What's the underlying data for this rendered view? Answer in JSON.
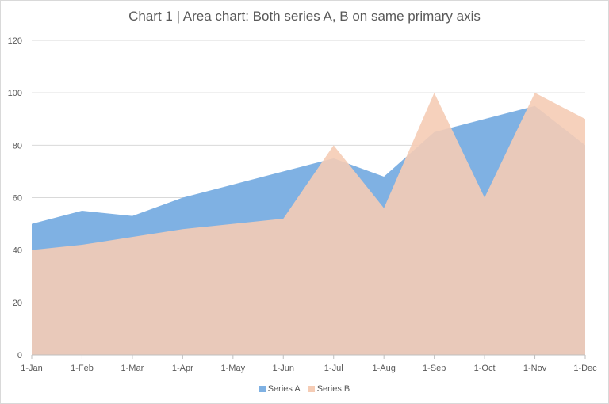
{
  "chart_data": {
    "type": "area",
    "title": "Chart 1 | Area chart: Both series A, B on same primary axis",
    "categories": [
      "1-Jan",
      "1-Feb",
      "1-Mar",
      "1-Apr",
      "1-May",
      "1-Jun",
      "1-Jul",
      "1-Aug",
      "1-Sep",
      "1-Oct",
      "1-Nov",
      "1-Dec"
    ],
    "series": [
      {
        "name": "Series A",
        "color": "#7FB1E3",
        "values": [
          50,
          55,
          53,
          60,
          65,
          70,
          75,
          68,
          85,
          90,
          95,
          80
        ]
      },
      {
        "name": "Series B",
        "color": "#F5CCB5",
        "values": [
          40,
          42,
          45,
          48,
          50,
          52,
          80,
          56,
          100,
          60,
          100,
          90
        ]
      }
    ],
    "ylim": [
      0,
      120
    ],
    "yticks": [
      0,
      20,
      40,
      60,
      80,
      100,
      120
    ],
    "grid": true,
    "legend": "bottom",
    "xlabel": "",
    "ylabel": ""
  }
}
